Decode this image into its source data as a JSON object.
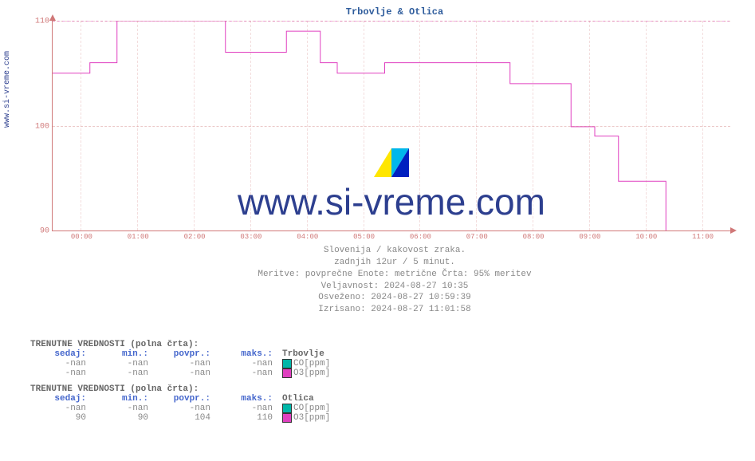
{
  "site_label": "www.si-vreme.com",
  "chart": {
    "title": "Trbovlje & Otlica",
    "type": "line",
    "ylim": [
      90,
      110
    ],
    "yticks": [
      90,
      100,
      110
    ],
    "xlabels": [
      "00:00",
      "01:00",
      "02:00",
      "03:00",
      "04:00",
      "05:00",
      "06:00",
      "07:00",
      "08:00",
      "09:00",
      "10:00",
      "11:00"
    ],
    "grid_color": "#d8a0a0",
    "axis_color": "#d07878",
    "background_color": "#ffffff",
    "label_fontsize": 10,
    "series": [
      {
        "name": "O3_otlica",
        "color": "#e040c0",
        "width": 1,
        "points": [
          [
            0.0,
            105.0
          ],
          [
            0.055,
            105.0
          ],
          [
            0.055,
            106.0
          ],
          [
            0.095,
            106.0
          ],
          [
            0.095,
            110.0
          ],
          [
            0.255,
            110.0
          ],
          [
            0.255,
            107.0
          ],
          [
            0.345,
            107.0
          ],
          [
            0.345,
            109.0
          ],
          [
            0.395,
            109.0
          ],
          [
            0.395,
            106.0
          ],
          [
            0.42,
            106.0
          ],
          [
            0.42,
            105.0
          ],
          [
            0.49,
            105.0
          ],
          [
            0.49,
            106.0
          ],
          [
            0.675,
            106.0
          ],
          [
            0.675,
            104.0
          ],
          [
            0.765,
            104.0
          ],
          [
            0.765,
            99.9
          ],
          [
            0.8,
            99.9
          ],
          [
            0.8,
            99.0
          ],
          [
            0.835,
            99.0
          ],
          [
            0.835,
            94.7
          ],
          [
            0.905,
            94.7
          ],
          [
            0.905,
            89.8
          ],
          [
            0.918,
            89.8
          ]
        ]
      }
    ],
    "ref_line": {
      "y": 110,
      "color": "#e040c0",
      "dash": true
    }
  },
  "watermark": {
    "text": "www.si-vreme.com",
    "logo_colors": [
      "#ffe600",
      "#00b7eb",
      "#0020c0"
    ]
  },
  "subtitles": [
    "Slovenija / kakovost zraka.",
    "zadnjih 12ur / 5 minut.",
    "Meritve: povprečne  Enote: metrične  Črta: 95% meritev",
    "Veljavnost: 2024-08-27 10:35",
    "Osveženo: 2024-08-27 10:59:39",
    "Izrisano: 2024-08-27 11:01:58"
  ],
  "tables": [
    {
      "title": "TRENUTNE VREDNOSTI (polna črta):",
      "headers": [
        "sedaj:",
        "min.:",
        "povpr.:",
        "maks.:"
      ],
      "location": "Trbovlje",
      "rows": [
        {
          "values": [
            "-nan",
            "-nan",
            "-nan",
            "-nan"
          ],
          "swatch": "#00b7a8",
          "label": "CO[ppm]"
        },
        {
          "values": [
            "-nan",
            "-nan",
            "-nan",
            "-nan"
          ],
          "swatch": "#e040c0",
          "label": "O3[ppm]"
        }
      ]
    },
    {
      "title": "TRENUTNE VREDNOSTI (polna črta):",
      "headers": [
        "sedaj:",
        "min.:",
        "povpr.:",
        "maks.:"
      ],
      "location": "Otlica",
      "rows": [
        {
          "values": [
            "-nan",
            "-nan",
            "-nan",
            "-nan"
          ],
          "swatch": "#00b7a8",
          "label": "CO[ppm]"
        },
        {
          "values": [
            "90",
            "90",
            "104",
            "110"
          ],
          "swatch": "#e040c0",
          "label": "O3[ppm]"
        }
      ]
    }
  ]
}
